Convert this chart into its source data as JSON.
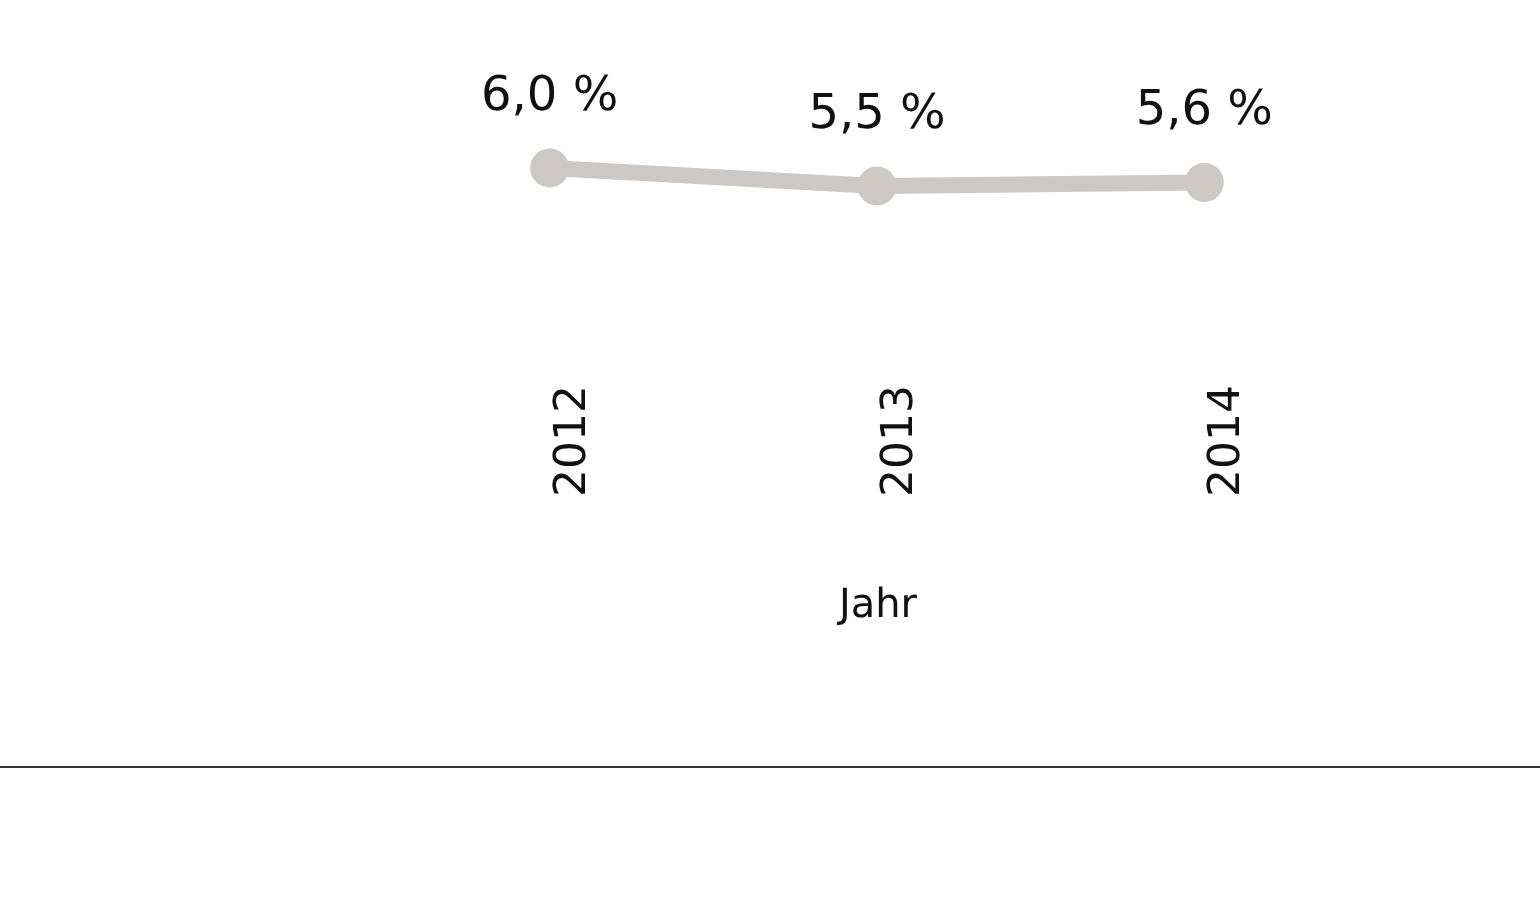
{
  "chart_data": {
    "type": "line",
    "xlabel": "Jahr",
    "categories": [
      "2012",
      "2013",
      "2014"
    ],
    "series": [
      {
        "color": "#cdc8c3",
        "values": [
          6.0,
          5.5,
          5.6
        ],
        "value_labels": [
          "6,0 %",
          "5,5 %",
          "5,6 %"
        ]
      }
    ],
    "tick_labels": "x",
    "marker": "circle",
    "grid": false,
    "legend": false
  }
}
